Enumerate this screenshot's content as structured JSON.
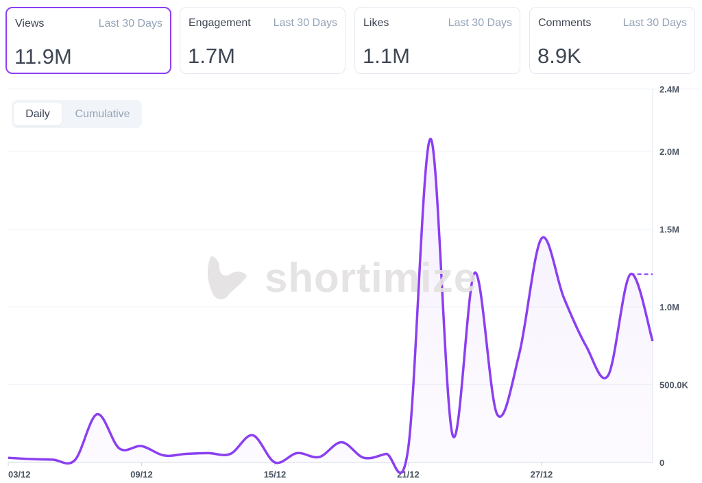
{
  "cards": [
    {
      "label": "Views",
      "period": "Last 30 Days",
      "value": "11.9M",
      "active": true
    },
    {
      "label": "Engagement",
      "period": "Last 30 Days",
      "value": "1.7M"
    },
    {
      "label": "Likes",
      "period": "Last 30 Days",
      "value": "1.1M"
    },
    {
      "label": "Comments",
      "period": "Last 30 Days",
      "value": "8.9K"
    }
  ],
  "toggle": {
    "daily": "Daily",
    "cumulative": "Cumulative",
    "selected": "Daily"
  },
  "watermark": "shortimize",
  "colors": {
    "accent": "#8b3ff0",
    "grid": "#eef2f7"
  },
  "chart_data": {
    "type": "line",
    "title": "Views",
    "x": [
      "03/12",
      "04/12",
      "05/12",
      "06/12",
      "07/12",
      "08/12",
      "09/12",
      "10/12",
      "11/12",
      "12/12",
      "13/12",
      "14/12",
      "15/12",
      "16/12",
      "17/12",
      "18/12",
      "19/12",
      "20/12",
      "21/12",
      "22/12",
      "23/12",
      "24/12",
      "25/12",
      "26/12",
      "27/12",
      "28/12",
      "29/12",
      "30/12",
      "31/12",
      "01/01"
    ],
    "values": [
      30000,
      22000,
      18000,
      15000,
      310000,
      90000,
      105000,
      45000,
      55000,
      60000,
      55000,
      175000,
      0,
      60000,
      35000,
      130000,
      30000,
      55000,
      90000,
      2080000,
      175000,
      1220000,
      310000,
      700000,
      1440000,
      1060000,
      750000,
      560000,
      1210000,
      780000
    ],
    "xticks": [
      "03/12",
      "09/12",
      "15/12",
      "21/12",
      "27/12"
    ],
    "yticks": [
      {
        "v": 0,
        "label": "0"
      },
      {
        "v": 500000,
        "label": "500.0K"
      },
      {
        "v": 1000000,
        "label": "1.0M"
      },
      {
        "v": 1500000,
        "label": "1.5M"
      },
      {
        "v": 2000000,
        "label": "2.0M"
      },
      {
        "v": 2400000,
        "label": "2.4M"
      }
    ],
    "ylim": [
      0,
      2400000
    ],
    "yaxis_position": "right",
    "grid": true
  }
}
